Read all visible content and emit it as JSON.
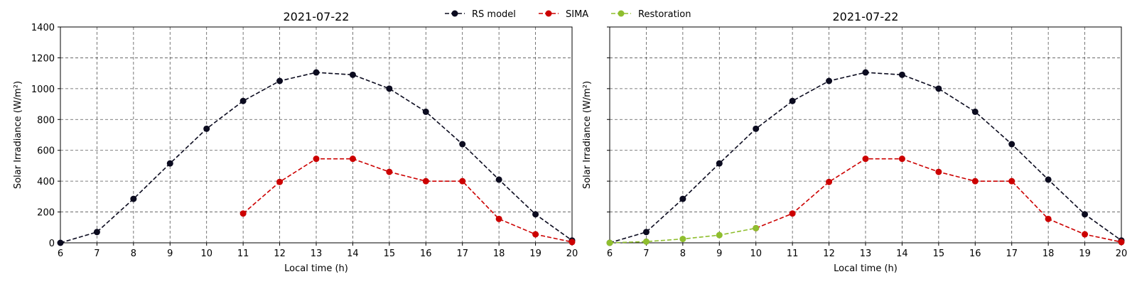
{
  "legend": {
    "placement": "top-center",
    "entries": [
      {
        "name": "RS model",
        "color": "#0b0b1f"
      },
      {
        "name": "SIMA",
        "color": "#cc0000"
      },
      {
        "name": "Restoration",
        "color": "#8fbe2e"
      }
    ]
  },
  "chart_data": [
    {
      "type": "line",
      "title": "2021-07-22",
      "xlabel": "Local time (h)",
      "ylabel": "Solar Irradiance (W/m²)",
      "xlim": [
        6,
        20
      ],
      "ylim": [
        0,
        1400
      ],
      "xticks": [
        6,
        7,
        8,
        9,
        10,
        11,
        12,
        13,
        14,
        15,
        16,
        17,
        18,
        19,
        20
      ],
      "yticks": [
        0,
        200,
        400,
        600,
        800,
        1000,
        1200,
        1400
      ],
      "grid": true,
      "series": [
        {
          "name": "RS model",
          "color": "#0b0b1f",
          "x": [
            6,
            7,
            8,
            9,
            10,
            11,
            12,
            13,
            14,
            15,
            16,
            17,
            18,
            19,
            20
          ],
          "y": [
            0,
            70,
            285,
            515,
            740,
            920,
            1050,
            1105,
            1090,
            1000,
            850,
            640,
            410,
            185,
            15
          ]
        },
        {
          "name": "SIMA",
          "color": "#cc0000",
          "x": [
            11,
            12,
            13,
            14,
            15,
            16,
            17,
            18,
            19,
            20
          ],
          "y": [
            190,
            395,
            545,
            545,
            460,
            400,
            400,
            155,
            55,
            5
          ]
        }
      ]
    },
    {
      "type": "line",
      "title": "2021-07-22",
      "xlabel": "Local time (h)",
      "ylabel": "Solar Irradiance (W/m²)",
      "xlim": [
        6,
        20
      ],
      "ylim": [
        0,
        1400
      ],
      "xticks": [
        6,
        7,
        8,
        9,
        10,
        11,
        12,
        13,
        14,
        15,
        16,
        17,
        18,
        19,
        20
      ],
      "yticks": [
        0,
        200,
        400,
        600,
        800,
        1000,
        1200,
        1400
      ],
      "ytick_labels_visible": false,
      "grid": true,
      "series": [
        {
          "name": "RS model",
          "color": "#0b0b1f",
          "x": [
            6,
            7,
            8,
            9,
            10,
            11,
            12,
            13,
            14,
            15,
            16,
            17,
            18,
            19,
            20
          ],
          "y": [
            0,
            70,
            285,
            515,
            740,
            920,
            1050,
            1105,
            1090,
            1000,
            850,
            640,
            410,
            185,
            15
          ]
        },
        {
          "name": "SIMA",
          "color": "#cc0000",
          "x": [
            10,
            11,
            12,
            13,
            14,
            15,
            16,
            17,
            18,
            19,
            20
          ],
          "y": [
            95,
            190,
            395,
            545,
            545,
            460,
            400,
            400,
            155,
            55,
            5
          ]
        },
        {
          "name": "Restoration",
          "color": "#8fbe2e",
          "x": [
            6,
            7,
            8,
            9,
            10
          ],
          "y": [
            0,
            8,
            25,
            50,
            95
          ]
        }
      ]
    }
  ]
}
